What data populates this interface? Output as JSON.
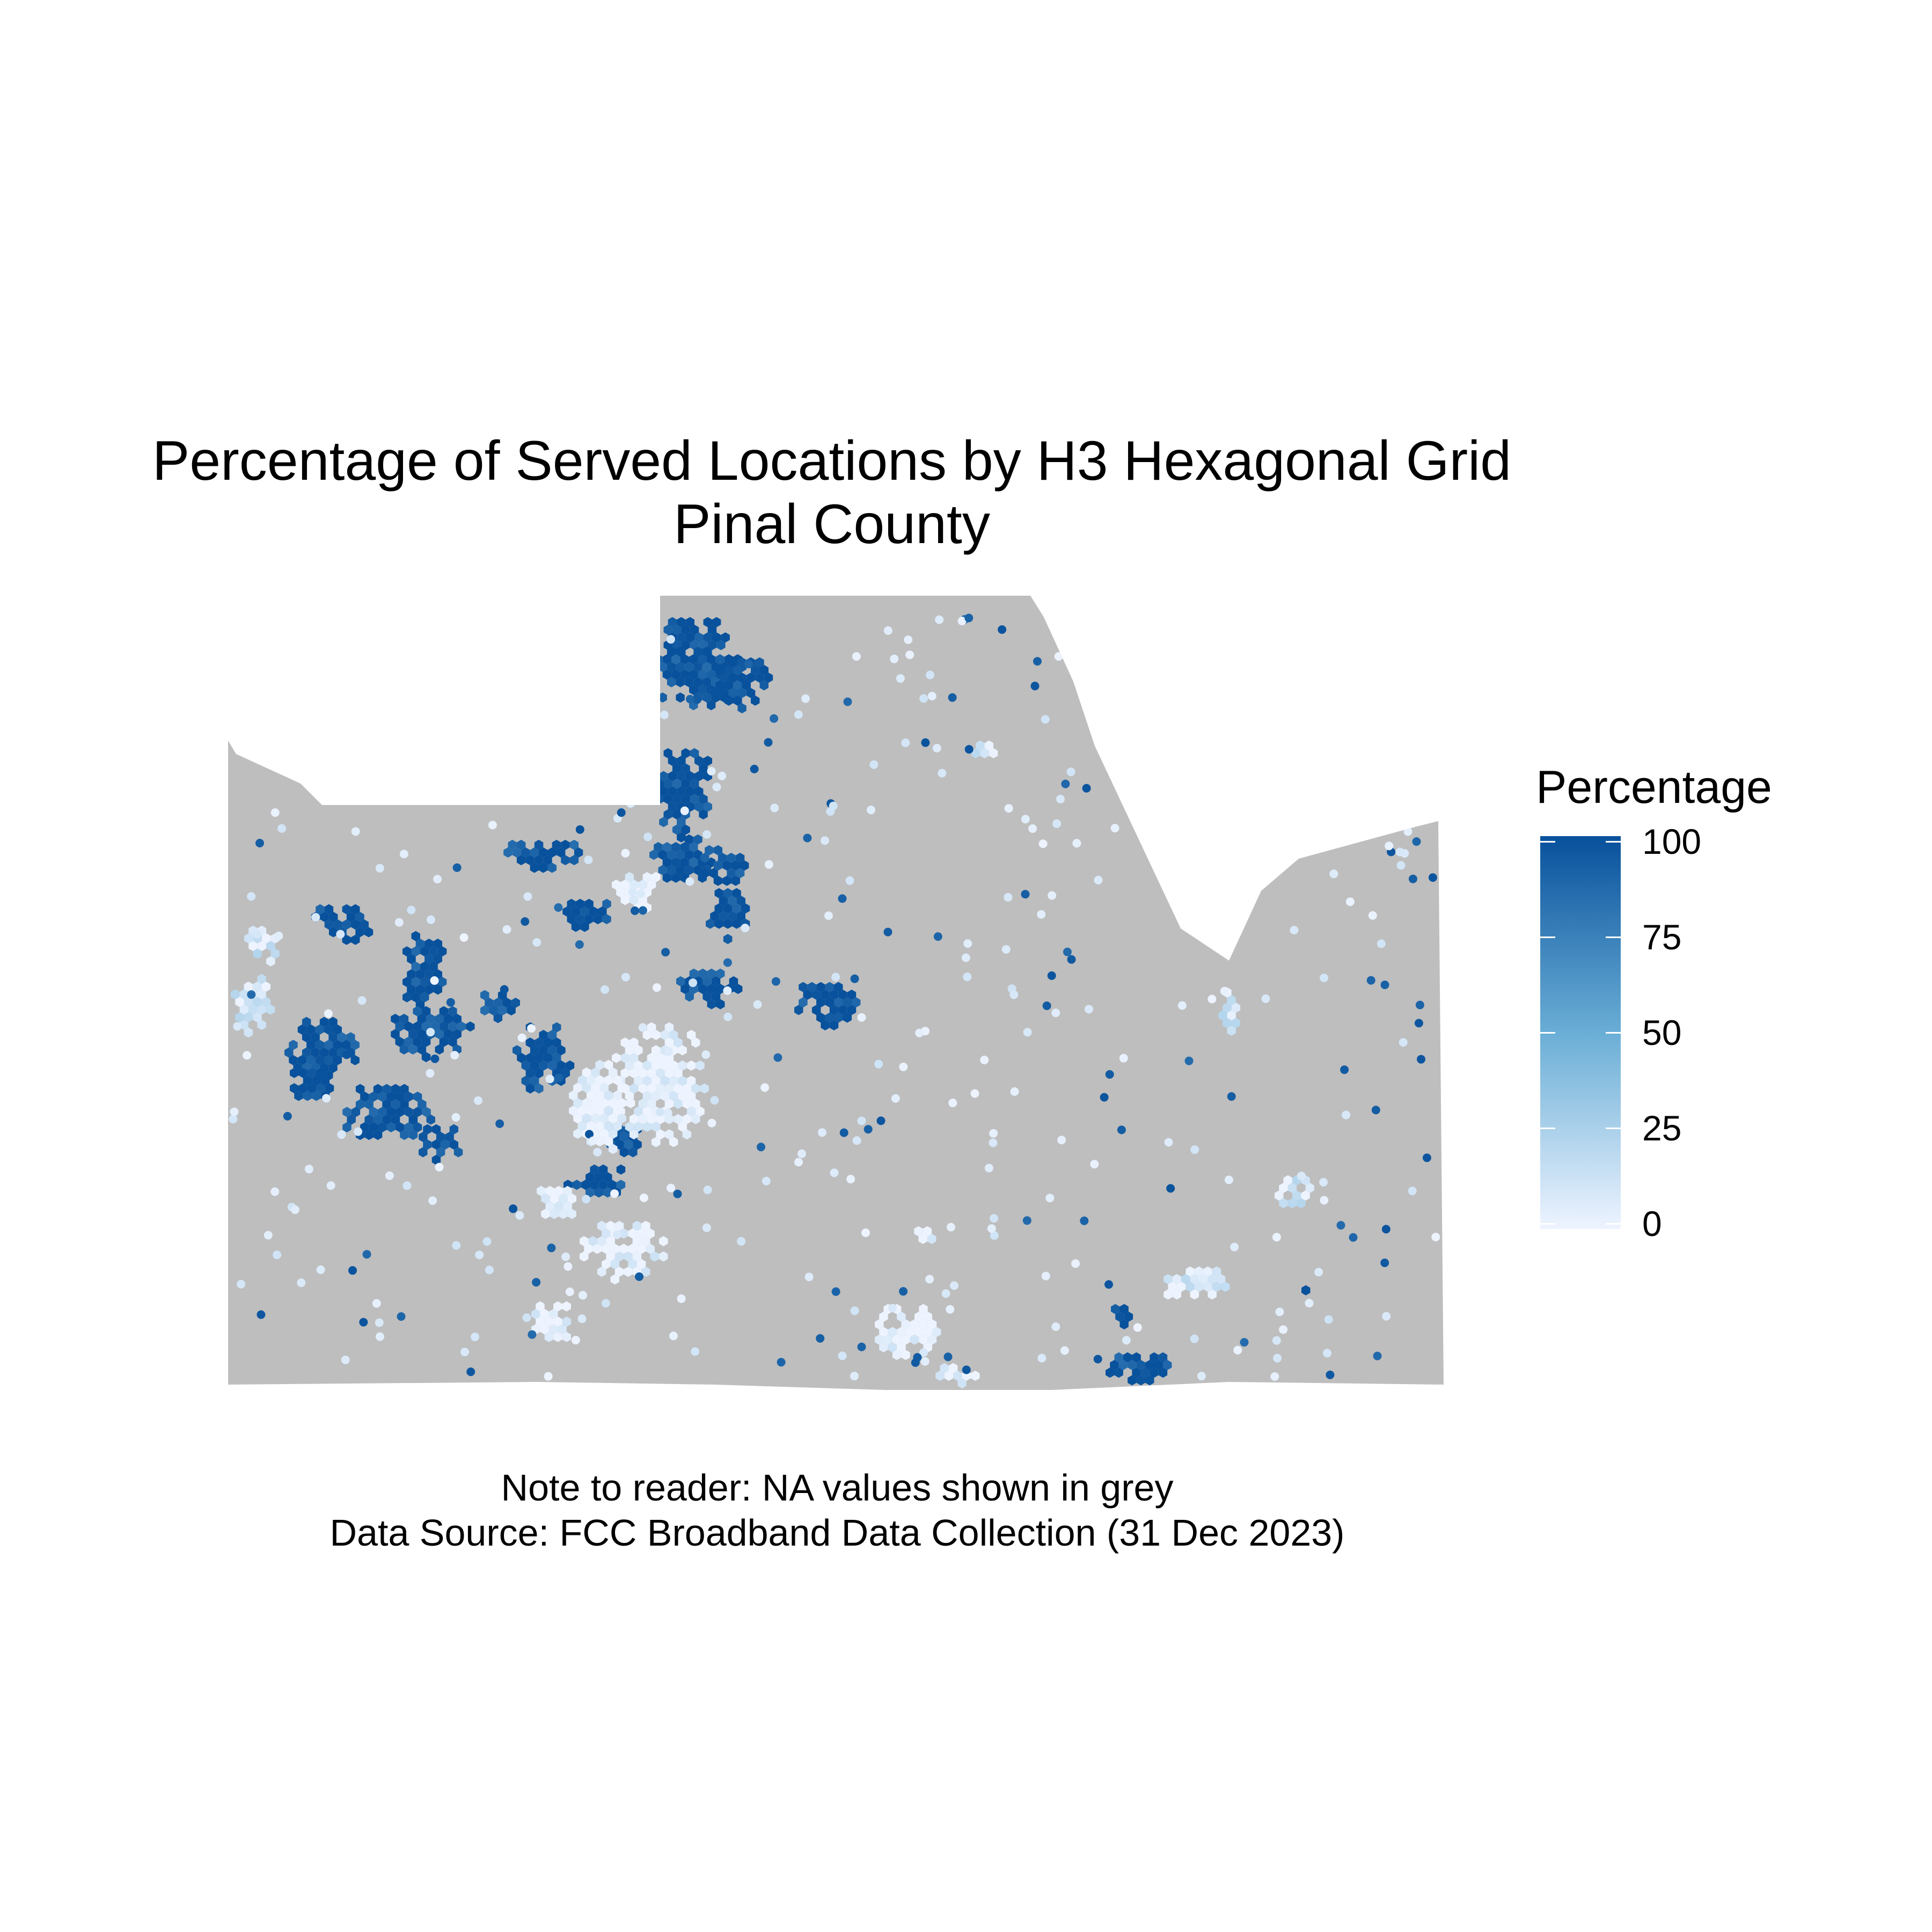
{
  "title": "Percentage of Served Locations by H3 Hexagonal Grid",
  "subtitle": "Pinal County",
  "legend": {
    "title": "Percentage",
    "ticks": [
      "100",
      "75",
      "50",
      "25",
      "0"
    ],
    "color_low": "#eef4ff",
    "color_mid": "#6aaed6",
    "color_high": "#08519c"
  },
  "na_color": "#bebebe",
  "caption": {
    "note": "Note to reader: NA values shown in grey",
    "source": "Data Source: FCC Broadband Data Collection (31 Dec 2023)"
  },
  "map_data": {
    "value_range": [
      0,
      100
    ],
    "served_clusters": [
      {
        "area": "northwest-pocket",
        "percent": 100
      },
      {
        "area": "north-central-column",
        "percent": 100
      },
      {
        "area": "central-core",
        "percent": 100
      },
      {
        "area": "west-urban-area",
        "percent": 100
      },
      {
        "area": "southeast-pocket",
        "percent": 100
      },
      {
        "area": "central-fringe",
        "percent": 0
      },
      {
        "area": "south-corridor",
        "percent": 0
      },
      {
        "area": "east-corridor",
        "percent": 10
      }
    ]
  }
}
